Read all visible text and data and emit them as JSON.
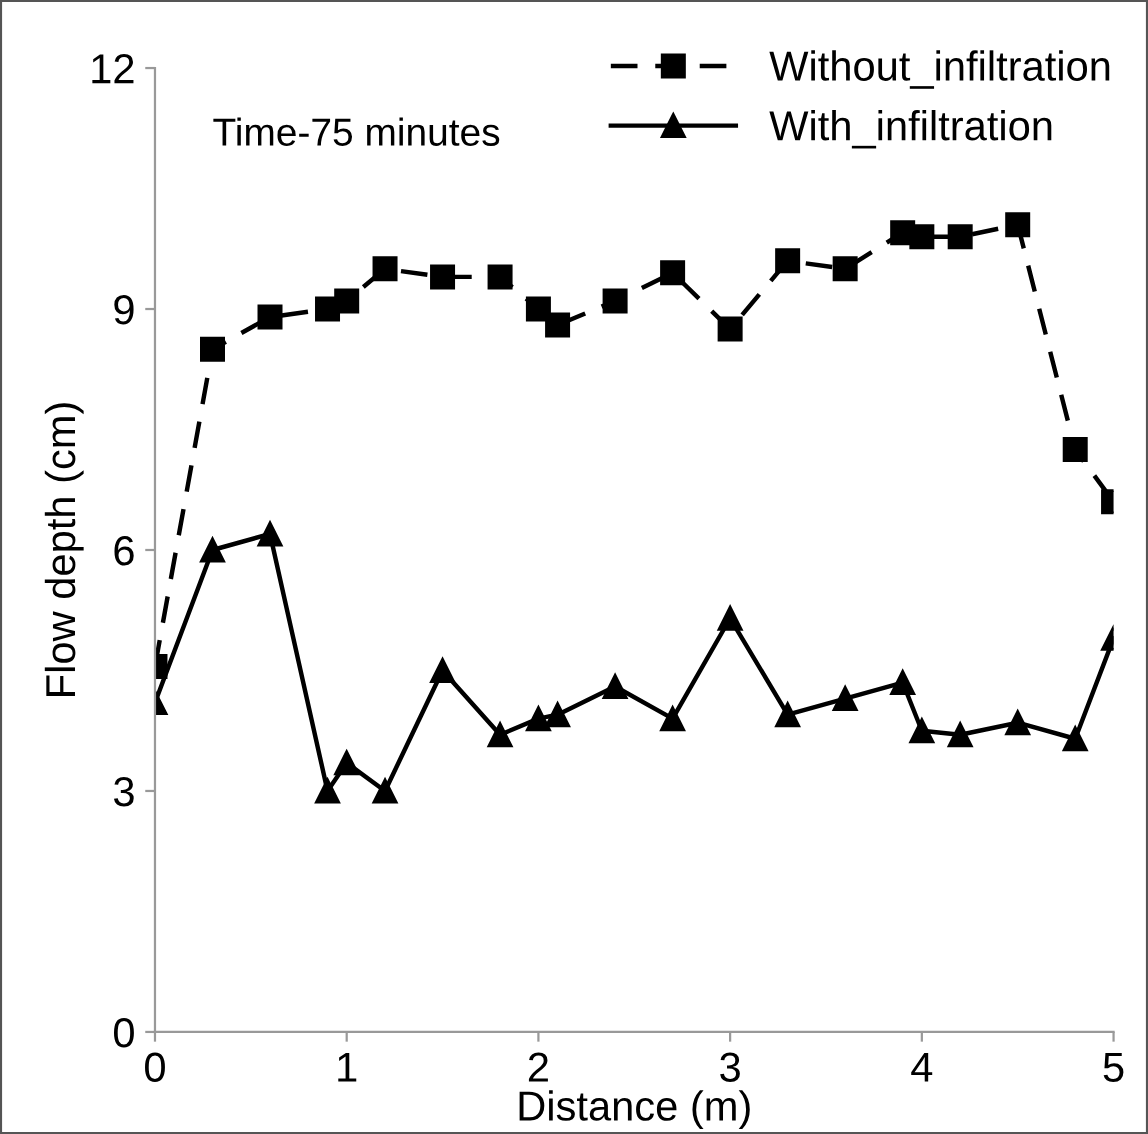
{
  "chart_data": {
    "type": "line",
    "xlabel": "Distance (m)",
    "ylabel": "Flow depth (cm)",
    "x": [
      0,
      0.3,
      0.6,
      0.9,
      1.0,
      1.2,
      1.5,
      1.8,
      2.0,
      2.1,
      2.4,
      2.7,
      3.0,
      3.3,
      3.6,
      3.9,
      4.0,
      4.2,
      4.5,
      4.8,
      5.0
    ],
    "series": [
      {
        "name": "Without_infiltration",
        "color": "#000000",
        "marker": "square",
        "line_style": "dashed",
        "values": [
          4.55,
          8.5,
          8.9,
          9.0,
          9.1,
          9.5,
          9.4,
          9.4,
          9.0,
          8.8,
          9.1,
          9.45,
          8.75,
          9.6,
          9.5,
          9.95,
          9.9,
          9.9,
          10.05,
          7.25,
          6.6
        ]
      },
      {
        "name": "With_infiltration",
        "color": "#000000",
        "marker": "triangle",
        "line_style": "solid",
        "values": [
          4.1,
          6.0,
          6.2,
          3.0,
          3.35,
          3.0,
          4.5,
          3.7,
          3.9,
          3.95,
          4.3,
          3.9,
          5.15,
          3.95,
          4.15,
          4.35,
          3.75,
          3.7,
          3.85,
          3.65,
          4.9
        ]
      }
    ],
    "xlim": [
      0,
      5
    ],
    "xticks": [
      0,
      1,
      2,
      3,
      4,
      5
    ],
    "ylim": [
      0,
      12
    ],
    "yticks": [
      0,
      3,
      6,
      9,
      12
    ],
    "grid": false,
    "legend": "top right",
    "annotations": [
      "Time-75 minutes"
    ]
  }
}
